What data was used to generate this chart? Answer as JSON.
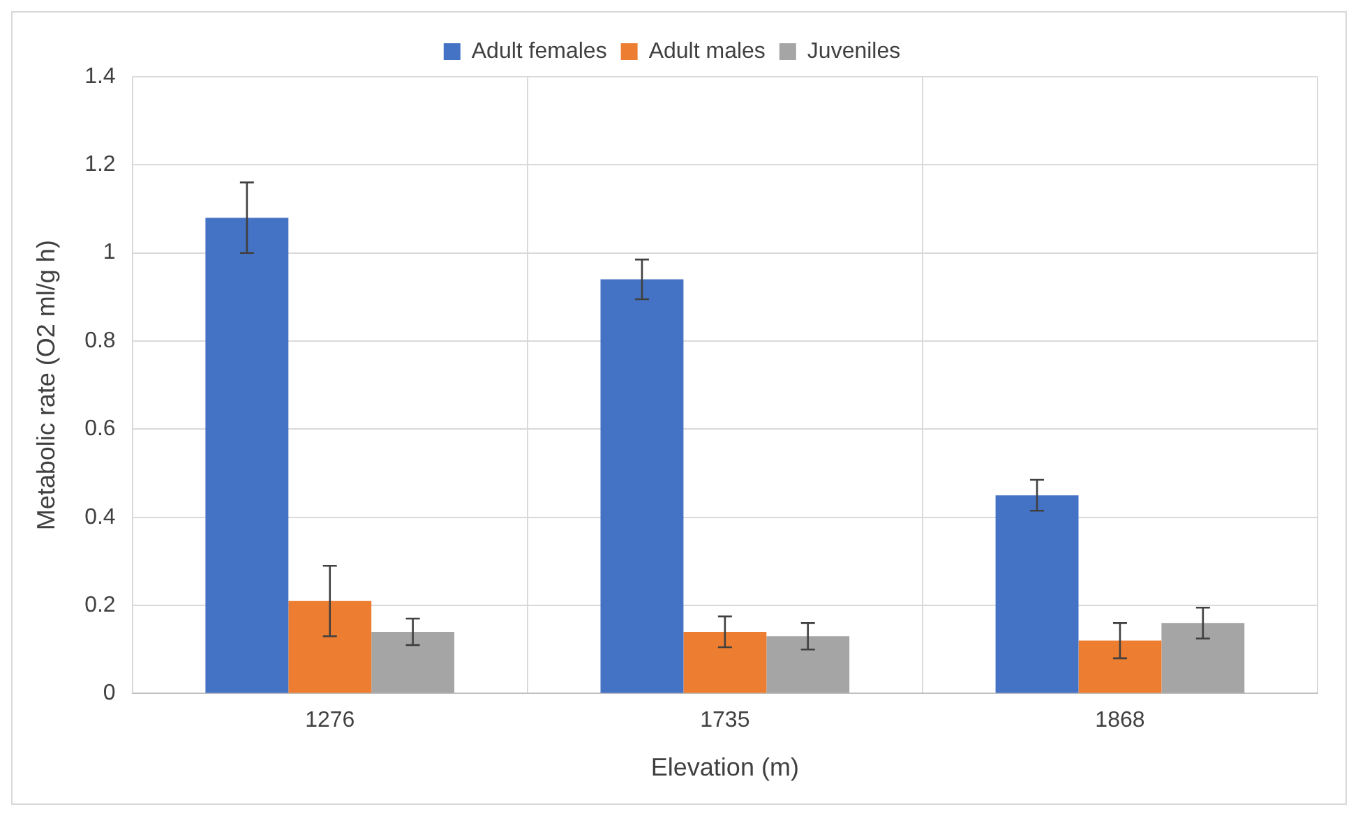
{
  "chart_data": {
    "type": "bar",
    "xlabel": "Elevation (m)",
    "ylabel": "Metabolic rate (O2 ml/g h)",
    "categories": [
      "1276",
      "1735",
      "1868"
    ],
    "series": [
      {
        "name": "Adult females",
        "color": "#4472c4",
        "values": [
          1.08,
          0.94,
          0.45
        ],
        "errors": [
          0.08,
          0.045,
          0.035
        ]
      },
      {
        "name": "Adult males",
        "color": "#ed7d31",
        "values": [
          0.21,
          0.14,
          0.12
        ],
        "errors": [
          0.08,
          0.035,
          0.04
        ]
      },
      {
        "name": "Juveniles",
        "color": "#a5a5a5",
        "values": [
          0.14,
          0.13,
          0.16
        ],
        "errors": [
          0.03,
          0.03,
          0.035
        ]
      }
    ],
    "ylim": [
      0,
      1.4
    ],
    "yticks": [
      0,
      0.2,
      0.4,
      0.6,
      0.8,
      1,
      1.2,
      1.4
    ],
    "grid": true,
    "legend": "top"
  }
}
